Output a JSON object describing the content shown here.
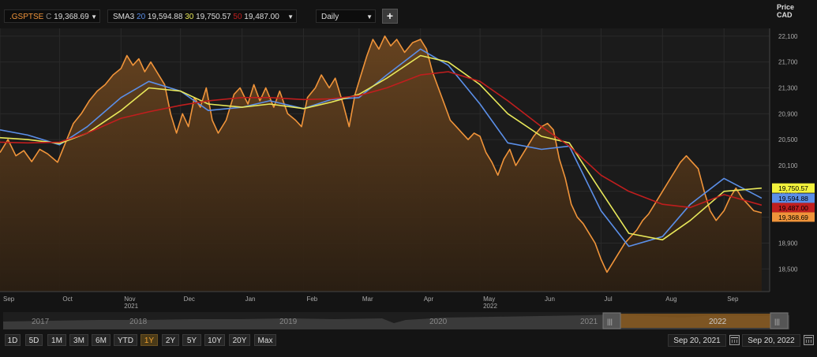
{
  "toolbar": {
    "symbol": ".GSPTSE",
    "close_prefix": "C",
    "close_value": "19,368.69",
    "study_name": "SMA3",
    "sma20_period": "20",
    "sma20_value": "19,594.88",
    "sma30_period": "30",
    "sma30_value": "19,750.57",
    "sma50_period": "50",
    "sma50_value": "19,487.00",
    "interval": "Daily",
    "add_label": "+",
    "dropdown_glyph": "▼"
  },
  "price_header": {
    "line1": "Price",
    "line2": "CAD"
  },
  "colors": {
    "price": "#f0943a",
    "sma20": "#5b8fe8",
    "sma30": "#e8e85a",
    "sma50": "#c01e1e"
  },
  "navigator": {
    "years": [
      "2017",
      "2018",
      "2019",
      "2020",
      "2021",
      "2022"
    ],
    "left_handle": "|||",
    "right_handle": "|||"
  },
  "ranges": [
    "1D",
    "5D",
    "1M",
    "3M",
    "6M",
    "YTD",
    "1Y",
    "2Y",
    "5Y",
    "10Y",
    "20Y",
    "Max"
  ],
  "active_range": "1Y",
  "date_range": {
    "from": "Sep 20, 2021",
    "to": "Sep 20, 2022"
  },
  "chart_data": {
    "type": "line",
    "y_axis": {
      "label": "Price CAD",
      "ticks": [
        18500,
        18900,
        19300,
        19700,
        20100,
        20500,
        20900,
        21300,
        21700,
        22100
      ],
      "tick_labels": [
        "18,500",
        "18,900",
        "19,300",
        "19,700",
        "20,100",
        "20,500",
        "20,900",
        "21,300",
        "21,700",
        "22,100"
      ],
      "range": [
        18150,
        22220
      ],
      "position": "right"
    },
    "x_axis": {
      "range": [
        "2021-09-01",
        "2022-09-24"
      ],
      "months": [
        {
          "label": "Sep",
          "date": "2021-09-01"
        },
        {
          "label": "Oct",
          "date": "2021-10-01"
        },
        {
          "label": "Nov",
          "date": "2021-11-01"
        },
        {
          "label": "Dec",
          "date": "2021-12-01"
        },
        {
          "label": "Jan",
          "date": "2022-01-01"
        },
        {
          "label": "Feb",
          "date": "2022-02-01"
        },
        {
          "label": "Mar",
          "date": "2022-03-01"
        },
        {
          "label": "Apr",
          "date": "2022-04-01"
        },
        {
          "label": "May",
          "date": "2022-05-01"
        },
        {
          "label": "Jun",
          "date": "2022-06-01"
        },
        {
          "label": "Jul",
          "date": "2022-07-01"
        },
        {
          "label": "Aug",
          "date": "2022-08-01"
        },
        {
          "label": "Sep",
          "date": "2022-09-01"
        }
      ],
      "years": [
        {
          "label": "2021",
          "date": "2021-11-01"
        },
        {
          "label": "2022",
          "date": "2022-05-01"
        }
      ]
    },
    "grid": true,
    "series": [
      {
        "name": ".GSPTSE",
        "style": "area",
        "points": [
          [
            "2021-09-01",
            20300
          ],
          [
            "2021-09-05",
            20500
          ],
          [
            "2021-09-09",
            20250
          ],
          [
            "2021-09-13",
            20330
          ],
          [
            "2021-09-17",
            20160
          ],
          [
            "2021-09-21",
            20350
          ],
          [
            "2021-09-25",
            20280
          ],
          [
            "2021-09-30",
            20150
          ],
          [
            "2021-10-04",
            20450
          ],
          [
            "2021-10-08",
            20750
          ],
          [
            "2021-10-12",
            20900
          ],
          [
            "2021-10-16",
            21100
          ],
          [
            "2021-10-20",
            21250
          ],
          [
            "2021-10-24",
            21350
          ],
          [
            "2021-10-28",
            21500
          ],
          [
            "2021-11-01",
            21600
          ],
          [
            "2021-11-04",
            21800
          ],
          [
            "2021-11-07",
            21650
          ],
          [
            "2021-11-10",
            21750
          ],
          [
            "2021-11-13",
            21550
          ],
          [
            "2021-11-16",
            21700
          ],
          [
            "2021-11-20",
            21500
          ],
          [
            "2021-11-23",
            21350
          ],
          [
            "2021-11-26",
            20900
          ],
          [
            "2021-11-29",
            20600
          ],
          [
            "2021-12-02",
            20900
          ],
          [
            "2021-12-05",
            20700
          ],
          [
            "2021-12-08",
            21150
          ],
          [
            "2021-12-11",
            21000
          ],
          [
            "2021-12-14",
            21300
          ],
          [
            "2021-12-17",
            20800
          ],
          [
            "2021-12-20",
            20600
          ],
          [
            "2021-12-24",
            20800
          ],
          [
            "2021-12-28",
            21200
          ],
          [
            "2021-12-31",
            21300
          ],
          [
            "2022-01-04",
            21050
          ],
          [
            "2022-01-07",
            21350
          ],
          [
            "2022-01-10",
            21100
          ],
          [
            "2022-01-13",
            21300
          ],
          [
            "2022-01-17",
            21000
          ],
          [
            "2022-01-20",
            21250
          ],
          [
            "2022-01-24",
            20900
          ],
          [
            "2022-01-28",
            20800
          ],
          [
            "2022-01-31",
            20700
          ],
          [
            "2022-02-03",
            21150
          ],
          [
            "2022-02-07",
            21300
          ],
          [
            "2022-02-10",
            21500
          ],
          [
            "2022-02-14",
            21300
          ],
          [
            "2022-02-17",
            21450
          ],
          [
            "2022-02-21",
            21050
          ],
          [
            "2022-02-24",
            20700
          ],
          [
            "2022-02-27",
            21200
          ],
          [
            "2022-03-02",
            21500
          ],
          [
            "2022-03-05",
            21800
          ],
          [
            "2022-03-08",
            22050
          ],
          [
            "2022-03-11",
            21900
          ],
          [
            "2022-03-14",
            22100
          ],
          [
            "2022-03-17",
            21950
          ],
          [
            "2022-03-20",
            22050
          ],
          [
            "2022-03-24",
            21850
          ],
          [
            "2022-03-28",
            22000
          ],
          [
            "2022-04-01",
            22050
          ],
          [
            "2022-04-04",
            21900
          ],
          [
            "2022-04-07",
            21550
          ],
          [
            "2022-04-10",
            21300
          ],
          [
            "2022-04-13",
            21050
          ],
          [
            "2022-04-16",
            20800
          ],
          [
            "2022-04-19",
            20700
          ],
          [
            "2022-04-22",
            20600
          ],
          [
            "2022-04-25",
            20500
          ],
          [
            "2022-04-28",
            20600
          ],
          [
            "2022-05-01",
            20550
          ],
          [
            "2022-05-04",
            20300
          ],
          [
            "2022-05-07",
            20150
          ],
          [
            "2022-05-10",
            19950
          ],
          [
            "2022-05-13",
            20200
          ],
          [
            "2022-05-16",
            20350
          ],
          [
            "2022-05-19",
            20100
          ],
          [
            "2022-05-22",
            20250
          ],
          [
            "2022-05-25",
            20400
          ],
          [
            "2022-05-28",
            20550
          ],
          [
            "2022-06-01",
            20700
          ],
          [
            "2022-06-04",
            20750
          ],
          [
            "2022-06-07",
            20650
          ],
          [
            "2022-06-10",
            20200
          ],
          [
            "2022-06-13",
            19900
          ],
          [
            "2022-06-16",
            19500
          ],
          [
            "2022-06-19",
            19300
          ],
          [
            "2022-06-22",
            19200
          ],
          [
            "2022-06-25",
            19050
          ],
          [
            "2022-06-28",
            18900
          ],
          [
            "2022-07-01",
            18650
          ],
          [
            "2022-07-04",
            18450
          ],
          [
            "2022-07-07",
            18600
          ],
          [
            "2022-07-10",
            18750
          ],
          [
            "2022-07-13",
            18900
          ],
          [
            "2022-07-16",
            19000
          ],
          [
            "2022-07-19",
            19100
          ],
          [
            "2022-07-22",
            19250
          ],
          [
            "2022-07-25",
            19350
          ],
          [
            "2022-07-28",
            19500
          ],
          [
            "2022-08-01",
            19700
          ],
          [
            "2022-08-04",
            19850
          ],
          [
            "2022-08-07",
            20000
          ],
          [
            "2022-08-10",
            20150
          ],
          [
            "2022-08-13",
            20250
          ],
          [
            "2022-08-16",
            20150
          ],
          [
            "2022-08-19",
            20050
          ],
          [
            "2022-08-22",
            19700
          ],
          [
            "2022-08-25",
            19400
          ],
          [
            "2022-08-28",
            19250
          ],
          [
            "2022-09-01",
            19400
          ],
          [
            "2022-09-04",
            19600
          ],
          [
            "2022-09-07",
            19750
          ],
          [
            "2022-09-10",
            19600
          ],
          [
            "2022-09-13",
            19500
          ],
          [
            "2022-09-16",
            19400
          ],
          [
            "2022-09-20",
            19368.69
          ]
        ]
      },
      {
        "name": "SMA 20",
        "points": [
          [
            "2021-09-01",
            20650
          ],
          [
            "2021-09-15",
            20570
          ],
          [
            "2021-10-01",
            20420
          ],
          [
            "2021-10-15",
            20700
          ],
          [
            "2021-11-01",
            21150
          ],
          [
            "2021-11-15",
            21400
          ],
          [
            "2021-12-01",
            21250
          ],
          [
            "2021-12-15",
            20950
          ],
          [
            "2022-01-01",
            21000
          ],
          [
            "2022-01-15",
            21100
          ],
          [
            "2022-02-01",
            20980
          ],
          [
            "2022-02-15",
            21120
          ],
          [
            "2022-03-01",
            21150
          ],
          [
            "2022-03-15",
            21500
          ],
          [
            "2022-04-01",
            21900
          ],
          [
            "2022-04-15",
            21650
          ],
          [
            "2022-05-01",
            21050
          ],
          [
            "2022-05-15",
            20450
          ],
          [
            "2022-06-01",
            20350
          ],
          [
            "2022-06-15",
            20400
          ],
          [
            "2022-07-01",
            19400
          ],
          [
            "2022-07-15",
            18850
          ],
          [
            "2022-08-01",
            19000
          ],
          [
            "2022-08-15",
            19500
          ],
          [
            "2022-09-01",
            19900
          ],
          [
            "2022-09-20",
            19594.88
          ]
        ]
      },
      {
        "name": "SMA 30",
        "points": [
          [
            "2021-09-01",
            20530
          ],
          [
            "2021-09-15",
            20500
          ],
          [
            "2021-10-01",
            20440
          ],
          [
            "2021-10-15",
            20600
          ],
          [
            "2021-11-01",
            20950
          ],
          [
            "2021-11-15",
            21300
          ],
          [
            "2021-12-01",
            21250
          ],
          [
            "2021-12-15",
            21050
          ],
          [
            "2022-01-01",
            21000
          ],
          [
            "2022-01-15",
            21050
          ],
          [
            "2022-02-01",
            20980
          ],
          [
            "2022-02-15",
            21080
          ],
          [
            "2022-03-01",
            21200
          ],
          [
            "2022-03-15",
            21450
          ],
          [
            "2022-04-01",
            21800
          ],
          [
            "2022-04-15",
            21700
          ],
          [
            "2022-05-01",
            21350
          ],
          [
            "2022-05-15",
            20900
          ],
          [
            "2022-06-01",
            20550
          ],
          [
            "2022-06-15",
            20450
          ],
          [
            "2022-07-01",
            19700
          ],
          [
            "2022-07-15",
            19050
          ],
          [
            "2022-08-01",
            18950
          ],
          [
            "2022-08-15",
            19250
          ],
          [
            "2022-09-01",
            19700
          ],
          [
            "2022-09-20",
            19750.57
          ]
        ]
      },
      {
        "name": "SMA 50",
        "points": [
          [
            "2021-09-01",
            20460
          ],
          [
            "2021-09-15",
            20450
          ],
          [
            "2021-10-01",
            20460
          ],
          [
            "2021-10-15",
            20600
          ],
          [
            "2021-11-01",
            20830
          ],
          [
            "2021-11-15",
            20930
          ],
          [
            "2021-12-01",
            21030
          ],
          [
            "2021-12-15",
            21100
          ],
          [
            "2022-01-01",
            21150
          ],
          [
            "2022-01-15",
            21150
          ],
          [
            "2022-02-01",
            21120
          ],
          [
            "2022-02-15",
            21130
          ],
          [
            "2022-03-01",
            21180
          ],
          [
            "2022-03-15",
            21300
          ],
          [
            "2022-04-01",
            21500
          ],
          [
            "2022-04-15",
            21550
          ],
          [
            "2022-05-01",
            21400
          ],
          [
            "2022-05-15",
            21100
          ],
          [
            "2022-06-01",
            20700
          ],
          [
            "2022-06-15",
            20400
          ],
          [
            "2022-07-01",
            19950
          ],
          [
            "2022-07-15",
            19700
          ],
          [
            "2022-08-01",
            19500
          ],
          [
            "2022-08-15",
            19450
          ],
          [
            "2022-09-01",
            19650
          ],
          [
            "2022-09-20",
            19487.0
          ]
        ]
      }
    ],
    "value_tags": [
      {
        "series": "SMA 30",
        "label": "19,750.57",
        "value": 19750.57,
        "color": "#f2f23c",
        "text_color": "#000000"
      },
      {
        "series": "SMA 20",
        "label": "19,594.88",
        "value": 19594.88,
        "color": "#5b8fe8",
        "text_color": "#000000"
      },
      {
        "series": "SMA 50",
        "label": "19,487.00",
        "value": 19487.0,
        "color": "#c01e1e",
        "text_color": "#000000"
      },
      {
        "series": ".GSPTSE",
        "label": "19,368.69",
        "value": 19368.69,
        "color": "#f0943a",
        "text_color": "#000000"
      }
    ]
  }
}
